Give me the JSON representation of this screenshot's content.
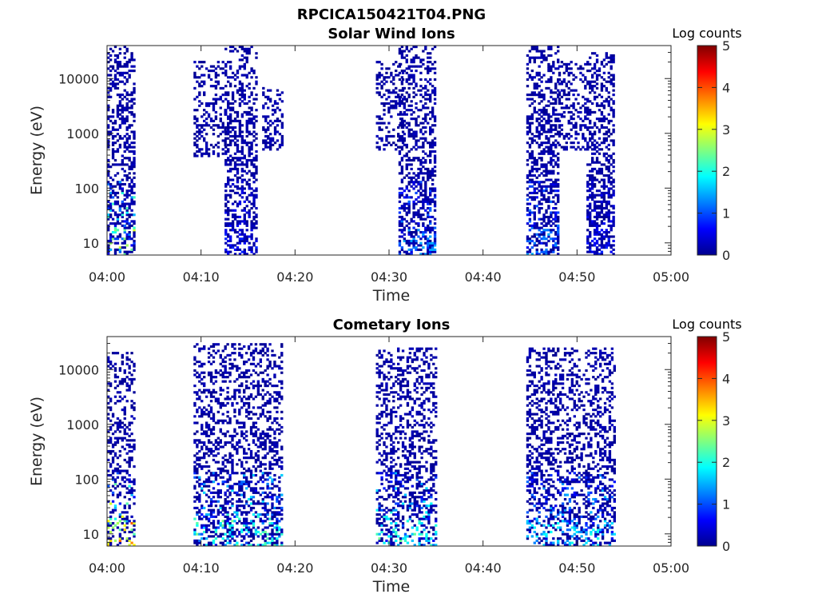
{
  "figure_title": "RPCICA150421T04.PNG",
  "chart_data": [
    {
      "type": "heatmap",
      "title": "Solar Wind Ions",
      "xlabel": "Time",
      "ylabel": "Energy (eV)",
      "x_tick_labels": [
        "04:00",
        "04:10",
        "04:20",
        "04:30",
        "04:40",
        "04:50",
        "05:00"
      ],
      "x_range_minutes": [
        0,
        60
      ],
      "y_scale": "log",
      "y_tick_labels": [
        "10",
        "100",
        "1000",
        "10000"
      ],
      "y_range_eV": [
        6,
        40000
      ],
      "colorbar": {
        "label": "Log counts",
        "ticks": [
          "0",
          "1",
          "2",
          "3",
          "4",
          "5"
        ],
        "range": [
          0,
          5
        ],
        "colormap": "jet"
      },
      "grid": false,
      "bursts": [
        {
          "t_start": 0.0,
          "t_end": 2.9,
          "e_low": 6,
          "e_high": 40000,
          "peak_log_counts": 3.0,
          "density": 0.55
        },
        {
          "t_start": 9.2,
          "t_end": 12.5,
          "e_low": 400,
          "e_high": 20000,
          "peak_log_counts": 0.5,
          "density": 0.4
        },
        {
          "t_start": 12.5,
          "t_end": 15.8,
          "e_low": 6,
          "e_high": 40000,
          "peak_log_counts": 0.8,
          "density": 0.5
        },
        {
          "t_start": 16.5,
          "t_end": 18.7,
          "e_low": 500,
          "e_high": 7000,
          "peak_log_counts": 0.5,
          "density": 0.5
        },
        {
          "t_start": 28.6,
          "t_end": 31.5,
          "e_low": 500,
          "e_high": 20000,
          "peak_log_counts": 0.5,
          "density": 0.4
        },
        {
          "t_start": 31.0,
          "t_end": 35.0,
          "e_low": 6,
          "e_high": 40000,
          "peak_log_counts": 1.5,
          "density": 0.5
        },
        {
          "t_start": 44.6,
          "t_end": 48.0,
          "e_low": 6,
          "e_high": 40000,
          "peak_log_counts": 1.5,
          "density": 0.55
        },
        {
          "t_start": 48.0,
          "t_end": 51.0,
          "e_low": 500,
          "e_high": 20000,
          "peak_log_counts": 0.5,
          "density": 0.4
        },
        {
          "t_start": 51.0,
          "t_end": 54.0,
          "e_low": 6,
          "e_high": 30000,
          "peak_log_counts": 0.8,
          "density": 0.55
        }
      ]
    },
    {
      "type": "heatmap",
      "title": "Cometary Ions",
      "xlabel": "Time",
      "ylabel": "Energy (eV)",
      "x_tick_labels": [
        "04:00",
        "04:10",
        "04:20",
        "04:30",
        "04:40",
        "04:50",
        "05:00"
      ],
      "x_range_minutes": [
        0,
        60
      ],
      "y_scale": "log",
      "y_tick_labels": [
        "10",
        "100",
        "1000",
        "10000"
      ],
      "y_range_eV": [
        6,
        40000
      ],
      "colorbar": {
        "label": "Log counts",
        "ticks": [
          "0",
          "1",
          "2",
          "3",
          "4",
          "5"
        ],
        "range": [
          0,
          5
        ],
        "colormap": "jet"
      },
      "grid": false,
      "bursts": [
        {
          "t_start": 0.0,
          "t_end": 2.9,
          "e_low": 6,
          "e_high": 20000,
          "peak_log_counts": 4.0,
          "density": 0.4
        },
        {
          "t_start": 9.2,
          "t_end": 18.7,
          "e_low": 6,
          "e_high": 30000,
          "peak_log_counts": 2.5,
          "density": 0.45
        },
        {
          "t_start": 28.6,
          "t_end": 35.0,
          "e_low": 6,
          "e_high": 25000,
          "peak_log_counts": 2.5,
          "density": 0.45
        },
        {
          "t_start": 44.6,
          "t_end": 54.0,
          "e_low": 6,
          "e_high": 25000,
          "peak_log_counts": 2.0,
          "density": 0.45
        }
      ]
    }
  ]
}
